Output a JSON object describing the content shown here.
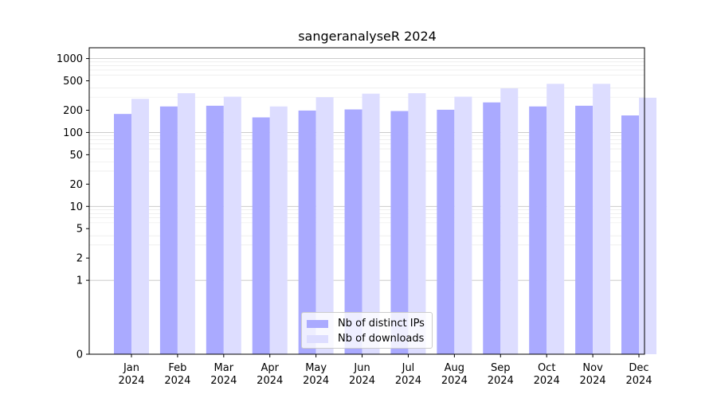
{
  "chart_data": {
    "type": "bar",
    "title": "sangeranalyseR 2024",
    "xlabel": "",
    "ylabel": "",
    "yscale": "symlog",
    "ylim": [
      0,
      1400
    ],
    "grid": true,
    "legend_position": "lower-center",
    "y_ticks": [
      "0",
      "1",
      "2",
      "5",
      "10",
      "20",
      "50",
      "100",
      "200",
      "500",
      "1000"
    ],
    "categories": [
      "Jan\n2024",
      "Feb\n2024",
      "Mar\n2024",
      "Apr\n2024",
      "May\n2024",
      "Jun\n2024",
      "Jul\n2024",
      "Aug\n2024",
      "Sep\n2024",
      "Oct\n2024",
      "Nov\n2024",
      "Dec\n2024"
    ],
    "series": [
      {
        "name": "Nb of distinct IPs",
        "color": "#aaaaff",
        "values": [
          178,
          225,
          230,
          160,
          198,
          205,
          195,
          203,
          255,
          225,
          230,
          170
        ]
      },
      {
        "name": "Nb of downloads",
        "color": "#ddddff",
        "values": [
          285,
          340,
          305,
          225,
          300,
          335,
          340,
          305,
          395,
          455,
          455,
          295
        ]
      }
    ]
  }
}
